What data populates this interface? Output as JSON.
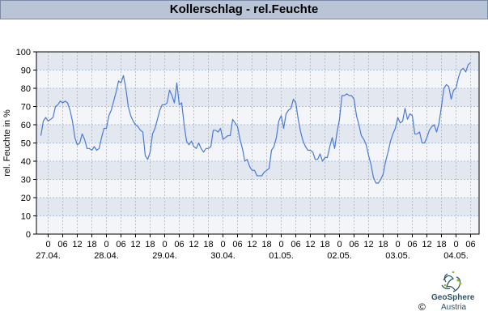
{
  "title": "Kollerschlag - rel.Feuchte",
  "copyright": "©",
  "logo": {
    "name": "GeoSphere",
    "sub": "Austria",
    "icon": "geosphere-logo-icon"
  },
  "colors": {
    "line": "#4a7bd4",
    "band_dark": "#e3e8f0",
    "band_light": "#f3f5f9",
    "grid": "#a8c4e2",
    "title_bg": "#b9c4d6"
  },
  "chart_data": {
    "type": "line",
    "title": "Kollerschlag - rel.Feuchte",
    "ylabel": "rel. Feuchte in %",
    "xlabel": "",
    "ylim": [
      0,
      100
    ],
    "yticks": [
      0,
      10,
      20,
      30,
      40,
      50,
      60,
      70,
      80,
      90,
      100
    ],
    "hour_ticks": [
      "0",
      "06",
      "12",
      "18",
      "0",
      "06",
      "12",
      "18",
      "0",
      "06",
      "12",
      "18",
      "0",
      "06",
      "12",
      "18",
      "0",
      "06",
      "12",
      "18",
      "0",
      "06",
      "12",
      "18",
      "0",
      "06",
      "12",
      "18",
      "0",
      "06"
    ],
    "date_labels": [
      "27.04.",
      "28.04.",
      "29.04.",
      "30.04.",
      "01.05.",
      "02.05.",
      "03.05.",
      "04.05."
    ],
    "grid": true,
    "series": [
      {
        "x_hours_from_27_04_00": [
          -3,
          -2,
          -1,
          0,
          1,
          2,
          3,
          4,
          5,
          6,
          7,
          8,
          9,
          10,
          11,
          12,
          13,
          14,
          15,
          16,
          17,
          18,
          19,
          20,
          21,
          22,
          23,
          24,
          25,
          26,
          27,
          28,
          29,
          30,
          31,
          32,
          33,
          34,
          35,
          36,
          37,
          38,
          39,
          40,
          41,
          42,
          43,
          44,
          45,
          46,
          47,
          48,
          49,
          50,
          51,
          52,
          53,
          54,
          55,
          56,
          57,
          58,
          59,
          60,
          61,
          62,
          63,
          64,
          65,
          66,
          67,
          68,
          69,
          70,
          71,
          72,
          73,
          74,
          75,
          76,
          77,
          78,
          79,
          80,
          81,
          82,
          83,
          84,
          85,
          86,
          87,
          88,
          89,
          90,
          91,
          92,
          93,
          94,
          95,
          96,
          97,
          98,
          99,
          100,
          101,
          102,
          103,
          104,
          105,
          106,
          107,
          108,
          109,
          110,
          111,
          112,
          113,
          114,
          115,
          116,
          117,
          118,
          119,
          120,
          121,
          122,
          123,
          124,
          125,
          126,
          127,
          128,
          129,
          130,
          131,
          132,
          133,
          134,
          135,
          136,
          137,
          138,
          139,
          140,
          141,
          142,
          143,
          144,
          145,
          146,
          147,
          148,
          149,
          150,
          151,
          152,
          153,
          154,
          155,
          156,
          157,
          158,
          159,
          160,
          161,
          162,
          163,
          164,
          165,
          166,
          167,
          168,
          169,
          170,
          171,
          172,
          173,
          174,
          175,
          176,
          177,
          178
        ],
        "values": [
          54,
          62,
          64,
          62,
          63,
          64,
          70,
          71,
          73,
          72,
          73,
          72,
          68,
          62,
          53,
          49,
          50,
          55,
          52,
          47,
          47,
          46,
          48,
          46,
          47,
          53,
          58,
          58,
          65,
          68,
          73,
          78,
          84,
          83,
          87,
          80,
          70,
          65,
          62,
          60,
          59,
          57,
          56,
          43,
          41,
          45,
          55,
          58,
          63,
          68,
          71,
          71,
          72,
          79,
          76,
          72,
          83,
          71,
          72,
          60,
          51,
          49,
          51,
          48,
          47,
          50,
          47,
          45,
          47,
          47,
          48,
          57,
          57,
          56,
          58,
          52,
          53,
          54,
          54,
          63,
          61,
          59,
          52,
          47,
          40,
          41,
          37,
          35,
          35,
          32,
          32,
          32,
          34,
          35,
          36,
          46,
          48,
          53,
          62,
          65,
          58,
          66,
          68,
          69,
          74,
          72,
          63,
          56,
          51,
          48,
          46,
          46,
          45,
          41,
          41,
          44,
          40,
          42,
          42,
          48,
          53,
          47,
          56,
          63,
          76,
          76,
          77,
          76,
          76,
          74,
          65,
          60,
          54,
          52,
          49,
          43,
          38,
          31,
          28,
          28,
          30,
          33,
          40,
          45,
          51,
          55,
          58,
          64,
          61,
          62,
          69,
          63,
          66,
          65,
          55,
          55,
          56,
          50,
          50,
          53,
          57,
          59,
          60,
          56,
          61,
          70,
          80,
          82,
          81,
          74,
          79,
          80,
          86,
          90,
          91,
          89,
          93,
          94
        ]
      }
    ]
  }
}
